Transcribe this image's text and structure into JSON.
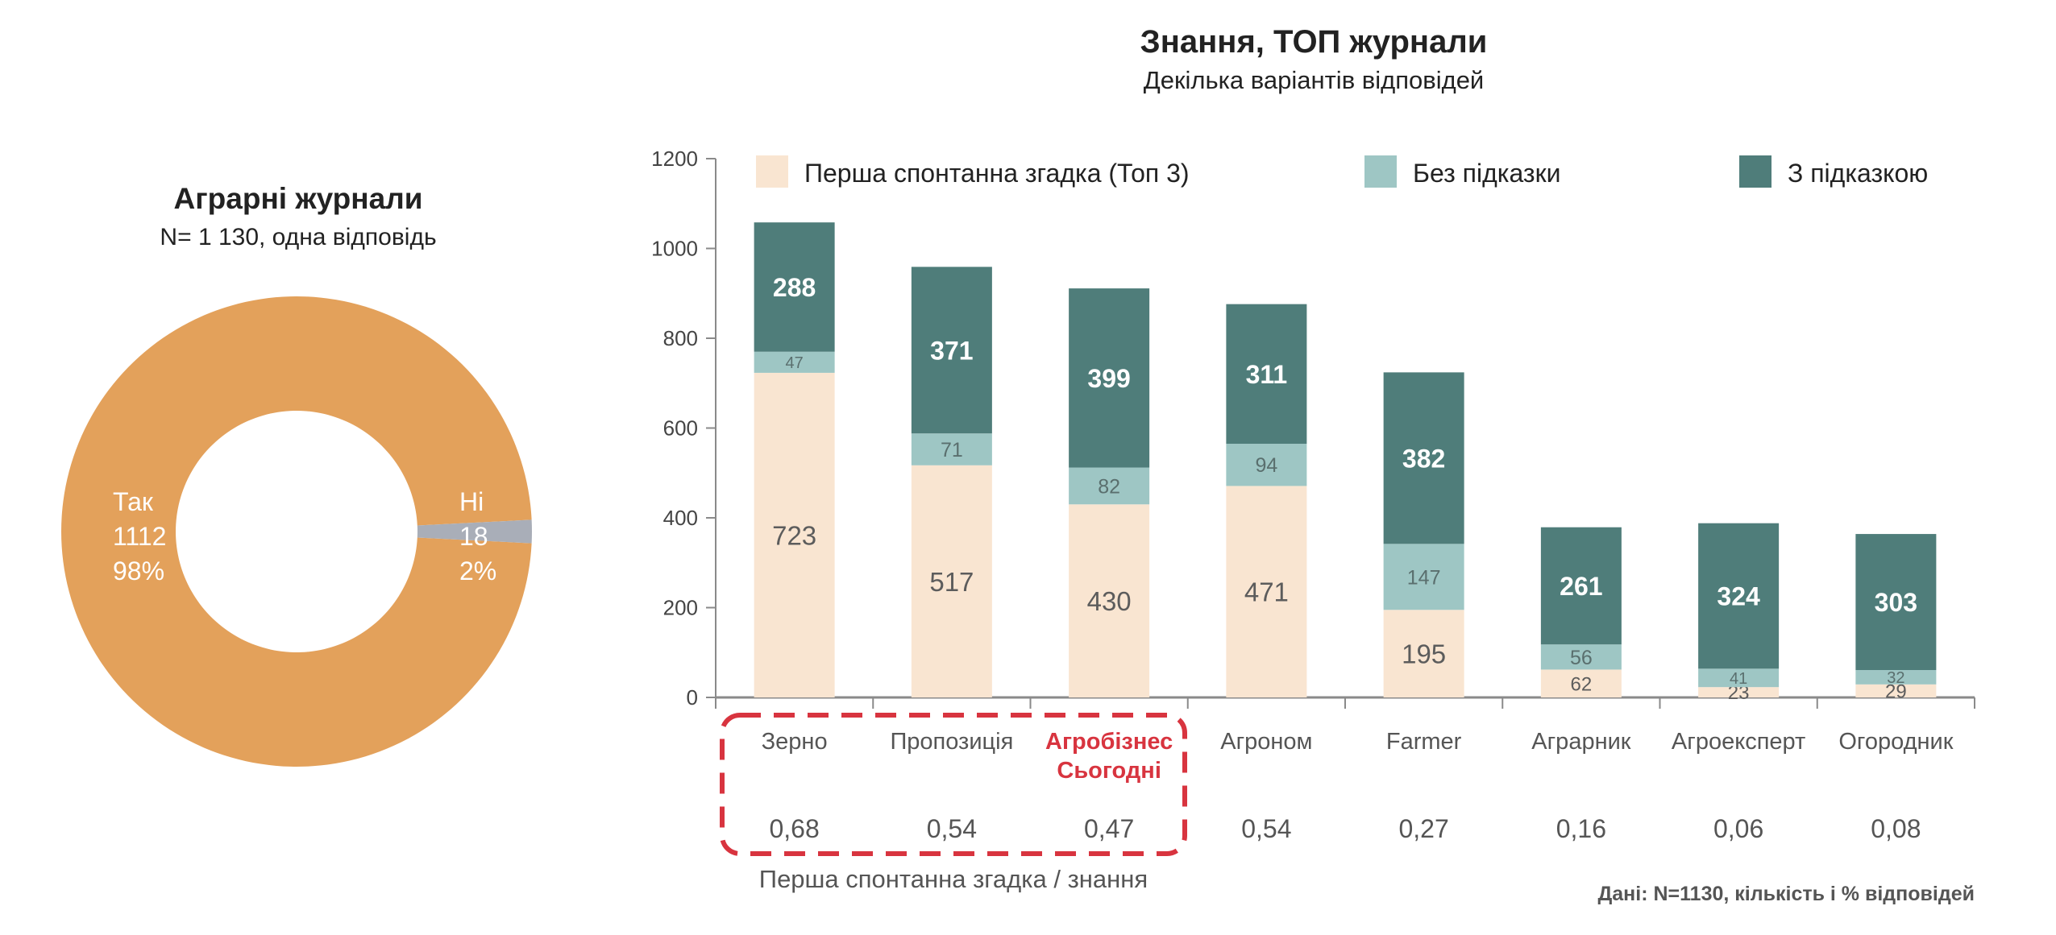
{
  "colors": {
    "first": "#f9e5d1",
    "unaided": "#9ec6c4",
    "aided": "#4f7d7a",
    "donut_yes": "#e3a15b",
    "donut_no": "#a9aeb8",
    "highlight": "#d8343f",
    "axis": "#8a8a8a",
    "text": "#555555"
  },
  "donut": {
    "title": "Аграрні журнали",
    "subtitle": "N= 1 130, одна відповідь",
    "yes": {
      "label": "Так",
      "count": "1112",
      "percent": "98%",
      "value": 1112
    },
    "no": {
      "label": "Ні",
      "count": "18",
      "percent": "2%",
      "value": 18
    }
  },
  "bar_chart": {
    "title": "Знання, ТОП журнали",
    "subtitle": "Декілька варіантів відповідей",
    "ratio_label": "Перша спонтанна згадка / знання",
    "source": "Дані: N=1130, кількість і % відповідей"
  },
  "chart_data": {
    "type": "bar",
    "stacked": true,
    "title": "Знання, ТОП журнали",
    "subtitle": "Декілька варіантів відповідей",
    "categories": [
      "Зерно",
      "Пропозиція",
      "Агробізнес Сьогодні",
      "Агроном",
      "Farmer",
      "Аграрник",
      "Агроексперт",
      "Огородник"
    ],
    "category_lines": [
      [
        "Зерно"
      ],
      [
        "Пропозиція"
      ],
      [
        "Агробізнес",
        "Сьогодні"
      ],
      [
        "Агроном"
      ],
      [
        "Farmer"
      ],
      [
        "Аграрник"
      ],
      [
        "Агроексперт"
      ],
      [
        "Огородник"
      ]
    ],
    "highlighted_category": "Агробізнес Сьогодні",
    "series": [
      {
        "name": "Перша спонтанна згадка (Топ 3)",
        "key": "first",
        "values": [
          723,
          517,
          430,
          471,
          195,
          62,
          23,
          29
        ]
      },
      {
        "name": "Без підказки",
        "key": "unaided",
        "values": [
          47,
          71,
          82,
          94,
          147,
          56,
          41,
          32
        ]
      },
      {
        "name": "З підказкою",
        "key": "aided",
        "values": [
          288,
          371,
          399,
          311,
          382,
          261,
          324,
          303
        ]
      }
    ],
    "ratios": [
      "0,68",
      "0,54",
      "0,47",
      "0,54",
      "0,27",
      "0,16",
      "0,06",
      "0,08"
    ],
    "yticks": [
      "0",
      "200",
      "400",
      "600",
      "800",
      "1000",
      "1200"
    ],
    "ylim": [
      0,
      1200
    ],
    "legend": "top"
  }
}
